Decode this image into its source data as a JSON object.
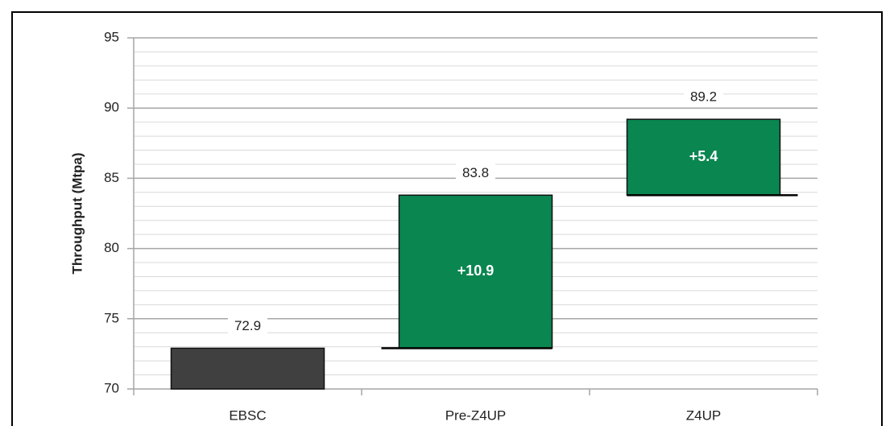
{
  "chart_data": {
    "type": "waterfall",
    "ylabel": "Throughput (Mtpa)",
    "categories": [
      "EBSC",
      "Pre-Z4UP",
      "Z4UP"
    ],
    "values": [
      72.9,
      10.9,
      5.4
    ],
    "value_labels": [
      "72.9",
      "+10.9",
      "+5.4"
    ],
    "annotations": [
      {
        "category": "Pre-Z4UP",
        "text": "83.8"
      },
      {
        "category": "Z4UP",
        "text": "89.2"
      }
    ],
    "base_color": "#404040",
    "delta_color": "#0a8650",
    "ylim": [
      70,
      95
    ],
    "yticks": [
      70,
      75,
      80,
      85,
      90,
      95
    ],
    "grid": true,
    "minor_grid_step": 1
  }
}
